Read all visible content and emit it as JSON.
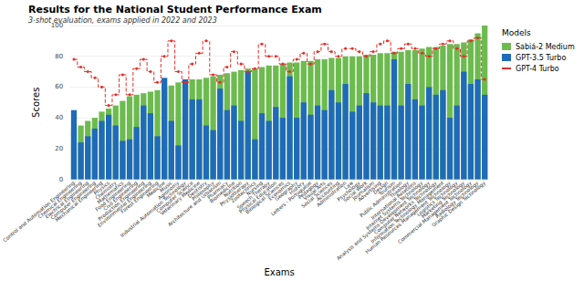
{
  "chart_data": {
    "type": "bar",
    "title": "Results for the National Student Performance Exam",
    "subtitle": "3-shot evaluation, exams applied in 2022 and 2023",
    "xlabel": "Exams",
    "ylabel": "Scores",
    "legend_title": "Models",
    "legend": "right",
    "grid": true,
    "stacked": false,
    "ylim": [
      0,
      100
    ],
    "yticks": [
      0,
      20,
      40,
      60,
      80,
      100
    ],
    "categories": [
      "Control and Automation Engineering",
      "Chemical Engineering",
      "Electrical Engineering",
      "Computer Engineering",
      "Mechanical Engineering",
      "Physics",
      "Chemistry",
      "Mathematics",
      "Food Engineering",
      "Civil Engineering",
      "Production Engineering",
      "Environmental Engineering",
      "Forest Engineering",
      "Medicine",
      "Music",
      "Agronomy",
      "Industrial Automation Technology",
      "Computer Science",
      "Veterinary Medicine",
      "Dentistry",
      "Philosophy",
      "Architecture and Urbanism",
      "Pharmacy",
      "Biomedicine",
      "Nutrition",
      "Physiotherapy",
      "Zootechnics",
      "Nursing",
      "Speech Therapy",
      "Physical Education",
      "Biological Sciences",
      "Economics",
      "Geography",
      "History",
      "Letters - Portuguese",
      "Pedagogy",
      "Visual Arts",
      "Social Sciences",
      "Accounting",
      "Administration",
      "Law",
      "Psychology",
      "Social Work",
      "Journalism",
      "Advertising",
      "Design",
      "Tourism",
      "Public Administration",
      "Theology",
      "International Relations",
      "Internet Systems Technology",
      "Analysis and Systems Development Technology",
      "Computer Networks Technology",
      "Information Technology Management",
      "Human Resources Management Technology",
      "Logistics Technology",
      "Marketing Technology",
      "Commercial Management Technology",
      "Radiology Technology",
      "Graphic Design Technology"
    ],
    "series": [
      {
        "name": "Sabiá-2 Medium",
        "type": "bar",
        "color": "#6dbb4f",
        "values": [
          33,
          35,
          38,
          40,
          44,
          46,
          48,
          51,
          54,
          55,
          56,
          57,
          58,
          60,
          61,
          63,
          64,
          65,
          65,
          66,
          67,
          68,
          69,
          70,
          71,
          72,
          72,
          73,
          74,
          74,
          75,
          76,
          76,
          77,
          77,
          78,
          78,
          79,
          79,
          80,
          80,
          80,
          81,
          81,
          82,
          82,
          83,
          83,
          84,
          84,
          85,
          86,
          86,
          87,
          88,
          88,
          89,
          91,
          95,
          100
        ]
      },
      {
        "name": "GPT-3.5 Turbo",
        "type": "bar",
        "color": "#1f6bb8",
        "values": [
          45,
          24,
          28,
          33,
          38,
          42,
          35,
          25,
          26,
          34,
          48,
          43,
          28,
          66,
          38,
          22,
          65,
          52,
          52,
          35,
          32,
          59,
          45,
          48,
          38,
          70,
          26,
          43,
          38,
          47,
          40,
          67,
          40,
          50,
          42,
          48,
          45,
          58,
          50,
          62,
          44,
          48,
          56,
          50,
          48,
          48,
          78,
          48,
          62,
          52,
          48,
          60,
          55,
          58,
          40,
          48,
          70,
          62,
          65,
          55
        ]
      },
      {
        "name": "GPT-4 Turbo",
        "type": "line",
        "color": "#e0302b",
        "line_style": "dashed",
        "marker": "circle",
        "values": [
          78,
          73,
          70,
          66,
          60,
          48,
          55,
          68,
          55,
          72,
          78,
          70,
          63,
          80,
          90,
          70,
          63,
          75,
          82,
          90,
          68,
          63,
          73,
          83,
          75,
          70,
          72,
          88,
          80,
          80,
          75,
          70,
          78,
          82,
          75,
          83,
          88,
          83,
          80,
          85,
          85,
          83,
          80,
          83,
          88,
          90,
          82,
          85,
          88,
          85,
          82,
          80,
          85,
          88,
          90,
          85,
          80,
          90,
          92,
          65
        ]
      }
    ]
  }
}
